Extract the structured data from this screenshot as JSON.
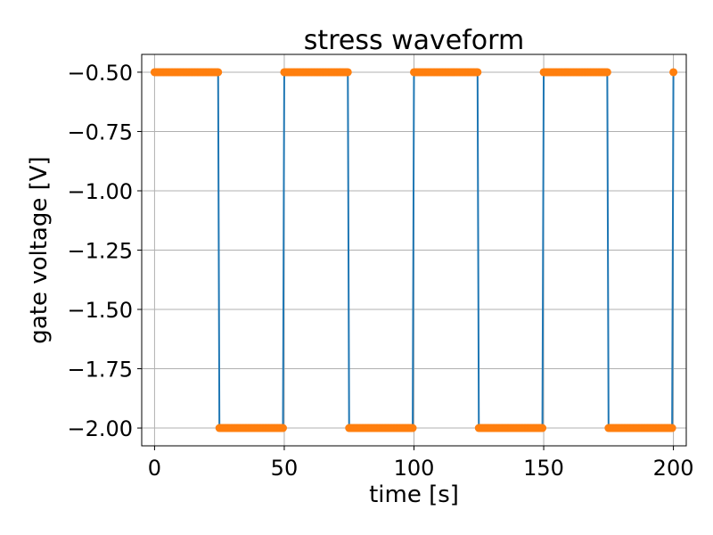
{
  "chart_data": {
    "type": "line",
    "title": "stress waveform",
    "xlabel": "time [s]",
    "ylabel": "gate voltage [V]",
    "xlim": [
      -4.95,
      204.95
    ],
    "ylim": [
      -2.075,
      -0.425
    ],
    "x_ticks": [
      0,
      50,
      100,
      150,
      200
    ],
    "x_tick_labels": [
      "0",
      "50",
      "100",
      "150",
      "200"
    ],
    "y_ticks": [
      -0.5,
      -0.75,
      -1.0,
      -1.25,
      -1.5,
      -1.75,
      -2.0
    ],
    "y_tick_labels": [
      "−0.50",
      "−0.75",
      "−1.00",
      "−1.25",
      "−1.50",
      "−1.75",
      "−2.00"
    ],
    "grid": true,
    "legend": false,
    "colors": {
      "line": "#1f77b4",
      "markers": "#ff7f0e",
      "grid": "#b0b0b0"
    },
    "waveform": {
      "high_level": -0.5,
      "low_level": -2.0,
      "period": 50,
      "duty_high": 25,
      "t_start": 0,
      "t_end": 200,
      "sample_step": 0.5
    }
  }
}
